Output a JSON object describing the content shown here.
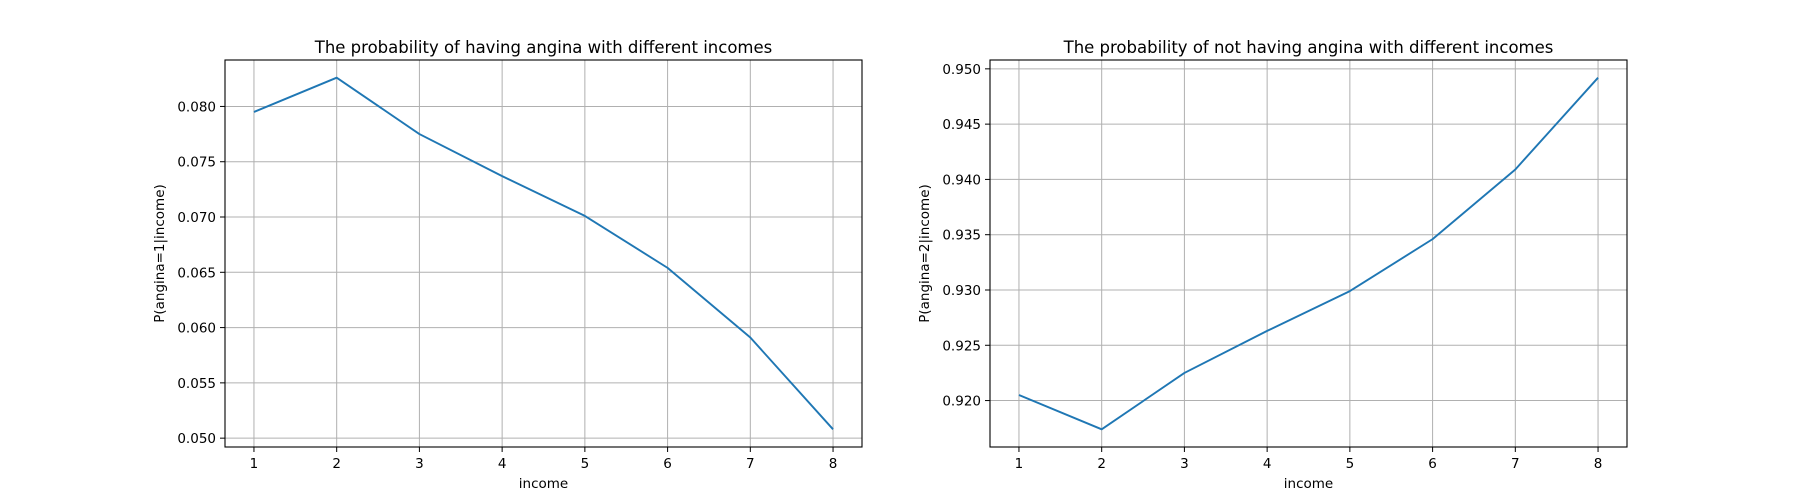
{
  "chart_data": [
    {
      "type": "line",
      "title": "The probability of having angina with different incomes",
      "xlabel": "income",
      "ylabel": "P(angina=1|income)",
      "x": [
        1,
        2,
        3,
        4,
        5,
        6,
        7,
        8
      ],
      "series": [
        {
          "values": [
            0.0795,
            0.0826,
            0.0775,
            0.0737,
            0.0701,
            0.0654,
            0.0591,
            0.0508
          ]
        }
      ],
      "xlim": [
        0.65,
        8.35
      ],
      "ylim": [
        0.0492,
        0.0842
      ],
      "xticks": [
        1,
        2,
        3,
        4,
        5,
        6,
        7,
        8
      ],
      "xtick_labels": [
        "1",
        "2",
        "3",
        "4",
        "5",
        "6",
        "7",
        "8"
      ],
      "yticks": [
        0.05,
        0.055,
        0.06,
        0.065,
        0.07,
        0.075,
        0.08
      ],
      "ytick_labels": [
        "0.050",
        "0.055",
        "0.060",
        "0.065",
        "0.070",
        "0.075",
        "0.080"
      ],
      "grid": true,
      "color": "#1f77b4"
    },
    {
      "type": "line",
      "title": "The probability of not having angina with different incomes",
      "xlabel": "income",
      "ylabel": "P(angina=2|income)",
      "x": [
        1,
        2,
        3,
        4,
        5,
        6,
        7,
        8
      ],
      "series": [
        {
          "values": [
            0.9205,
            0.9174,
            0.9225,
            0.9263,
            0.9299,
            0.9346,
            0.9409,
            0.9492
          ]
        }
      ],
      "xlim": [
        0.65,
        8.35
      ],
      "ylim": [
        0.9158,
        0.9508
      ],
      "xticks": [
        1,
        2,
        3,
        4,
        5,
        6,
        7,
        8
      ],
      "xtick_labels": [
        "1",
        "2",
        "3",
        "4",
        "5",
        "6",
        "7",
        "8"
      ],
      "yticks": [
        0.92,
        0.925,
        0.93,
        0.935,
        0.94,
        0.945,
        0.95
      ],
      "ytick_labels": [
        "0.920",
        "0.925",
        "0.930",
        "0.935",
        "0.940",
        "0.945",
        "0.950"
      ],
      "grid": true,
      "color": "#1f77b4"
    }
  ]
}
